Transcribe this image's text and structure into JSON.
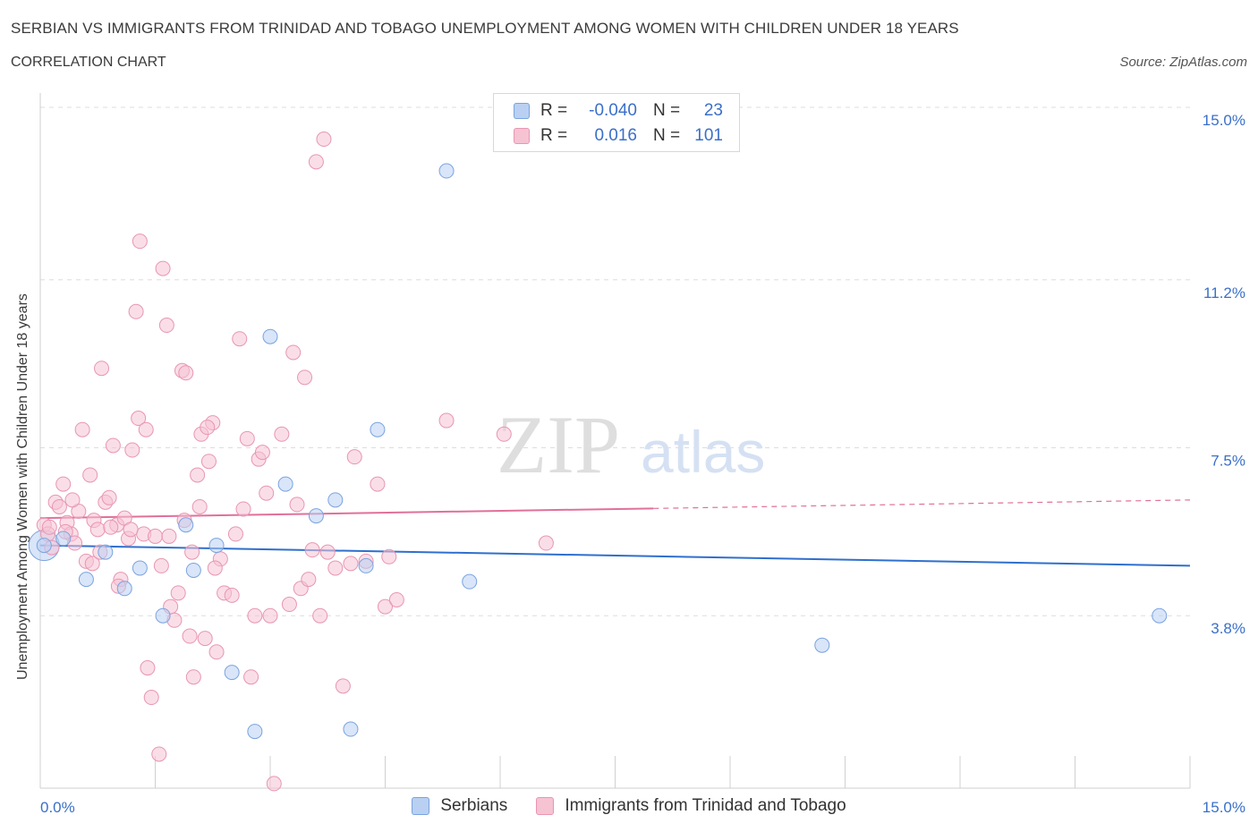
{
  "header": {
    "title": "SERBIAN VS IMMIGRANTS FROM TRINIDAD AND TOBAGO UNEMPLOYMENT AMONG WOMEN WITH CHILDREN UNDER 18 YEARS",
    "subtitle": "CORRELATION CHART",
    "source": "Source: ZipAtlas.com"
  },
  "watermark": {
    "zip": "ZIP",
    "atlas": "atlas"
  },
  "legend": {
    "r_label": "R =",
    "n_label": "N =",
    "serbians": {
      "r": "-0.040",
      "n": "23"
    },
    "trinidad": {
      "r": "0.016",
      "n": "101"
    }
  },
  "colors": {
    "serbians_fill": "#b9d0f2",
    "serbians_stroke": "#7aa3e0",
    "serbians_line": "#2f6fce",
    "trinidad_fill": "#f6c3d3",
    "trinidad_stroke": "#e896b1",
    "trinidad_line": "#e0709a",
    "tick_text": "#3a6fc9",
    "grid": "#dddddd"
  },
  "chart_data": {
    "type": "scatter",
    "title": "SERBIAN VS IMMIGRANTS FROM TRINIDAD AND TOBAGO UNEMPLOYMENT AMONG WOMEN WITH CHILDREN UNDER 18 YEARS",
    "xlabel": "",
    "ylabel": "Unemployment Among Women with Children Under 18 years",
    "xlim": [
      0,
      15
    ],
    "ylim": [
      0,
      15
    ],
    "x_tick_labels": [
      "0.0%",
      "15.0%"
    ],
    "y_ticks": [
      3.8,
      7.5,
      11.2,
      15.0
    ],
    "y_tick_labels": [
      "3.8%",
      "7.5%",
      "11.2%",
      "15.0%"
    ],
    "grid": true,
    "legend_position": "top-center",
    "series": [
      {
        "name": "Serbians",
        "trend": {
          "x": [
            0,
            15
          ],
          "y": [
            5.35,
            4.9
          ],
          "dashed_from": null
        },
        "points": [
          [
            0.05,
            5.35
          ],
          [
            0.3,
            5.5
          ],
          [
            0.6,
            4.6
          ],
          [
            0.85,
            5.2
          ],
          [
            1.1,
            4.4
          ],
          [
            1.3,
            4.85
          ],
          [
            1.6,
            3.8
          ],
          [
            1.9,
            5.8
          ],
          [
            2.0,
            4.8
          ],
          [
            2.3,
            5.35
          ],
          [
            2.5,
            2.55
          ],
          [
            2.8,
            1.25
          ],
          [
            3.0,
            9.95
          ],
          [
            3.2,
            6.7
          ],
          [
            3.6,
            6.0
          ],
          [
            3.85,
            6.35
          ],
          [
            4.05,
            1.3
          ],
          [
            4.25,
            4.9
          ],
          [
            4.4,
            7.9
          ],
          [
            5.3,
            13.6
          ],
          [
            5.6,
            4.55
          ],
          [
            10.2,
            3.15
          ],
          [
            14.6,
            3.8
          ]
        ]
      },
      {
        "name": "Immigrants from Trinidad and Tobago",
        "trend": {
          "x": [
            0,
            15
          ],
          "y": [
            5.95,
            6.35
          ],
          "dashed_from": 8.0
        },
        "points": [
          [
            0.05,
            5.8
          ],
          [
            0.1,
            5.6
          ],
          [
            0.15,
            5.3
          ],
          [
            0.2,
            6.3
          ],
          [
            0.25,
            6.2
          ],
          [
            0.3,
            6.7
          ],
          [
            0.35,
            5.85
          ],
          [
            0.4,
            5.6
          ],
          [
            0.45,
            5.4
          ],
          [
            0.5,
            6.1
          ],
          [
            0.55,
            7.9
          ],
          [
            0.6,
            5.0
          ],
          [
            0.65,
            6.9
          ],
          [
            0.7,
            5.9
          ],
          [
            0.75,
            5.7
          ],
          [
            0.8,
            9.25
          ],
          [
            0.85,
            6.3
          ],
          [
            0.9,
            6.4
          ],
          [
            0.95,
            7.55
          ],
          [
            1.0,
            5.8
          ],
          [
            1.05,
            4.6
          ],
          [
            1.1,
            5.95
          ],
          [
            1.15,
            5.5
          ],
          [
            1.2,
            7.45
          ],
          [
            1.25,
            10.5
          ],
          [
            1.3,
            12.05
          ],
          [
            1.35,
            5.6
          ],
          [
            1.4,
            2.65
          ],
          [
            1.45,
            2.0
          ],
          [
            1.5,
            5.55
          ],
          [
            1.55,
            0.75
          ],
          [
            1.6,
            11.45
          ],
          [
            1.65,
            10.2
          ],
          [
            1.7,
            4.0
          ],
          [
            1.75,
            3.7
          ],
          [
            1.8,
            4.3
          ],
          [
            1.85,
            9.2
          ],
          [
            1.9,
            9.15
          ],
          [
            1.95,
            3.35
          ],
          [
            2.0,
            2.45
          ],
          [
            2.05,
            6.9
          ],
          [
            2.1,
            7.8
          ],
          [
            2.15,
            3.3
          ],
          [
            2.2,
            7.2
          ],
          [
            2.25,
            8.05
          ],
          [
            2.3,
            3.0
          ],
          [
            2.35,
            5.05
          ],
          [
            2.4,
            4.3
          ],
          [
            2.5,
            4.25
          ],
          [
            2.6,
            9.9
          ],
          [
            2.65,
            6.15
          ],
          [
            2.7,
            7.7
          ],
          [
            2.75,
            2.45
          ],
          [
            2.8,
            3.8
          ],
          [
            2.85,
            7.25
          ],
          [
            2.9,
            7.4
          ],
          [
            2.95,
            6.5
          ],
          [
            3.0,
            3.8
          ],
          [
            3.05,
            0.1
          ],
          [
            3.15,
            7.8
          ],
          [
            3.25,
            4.05
          ],
          [
            3.3,
            9.6
          ],
          [
            3.4,
            4.4
          ],
          [
            3.45,
            9.05
          ],
          [
            3.5,
            4.6
          ],
          [
            3.55,
            5.25
          ],
          [
            3.6,
            13.8
          ],
          [
            3.65,
            3.8
          ],
          [
            3.7,
            14.3
          ],
          [
            3.85,
            4.85
          ],
          [
            3.95,
            2.25
          ],
          [
            4.1,
            7.3
          ],
          [
            4.25,
            5.0
          ],
          [
            4.4,
            6.7
          ],
          [
            4.5,
            4.0
          ],
          [
            4.55,
            5.1
          ],
          [
            4.65,
            4.15
          ],
          [
            5.3,
            8.1
          ],
          [
            6.05,
            7.8
          ],
          [
            6.6,
            5.4
          ],
          [
            0.12,
            5.75
          ],
          [
            0.33,
            5.65
          ],
          [
            0.42,
            6.35
          ],
          [
            0.68,
            4.95
          ],
          [
            0.78,
            5.2
          ],
          [
            0.92,
            5.75
          ],
          [
            1.02,
            4.45
          ],
          [
            1.18,
            5.7
          ],
          [
            1.28,
            8.15
          ],
          [
            1.38,
            7.9
          ],
          [
            1.58,
            4.9
          ],
          [
            1.68,
            5.55
          ],
          [
            1.88,
            5.9
          ],
          [
            1.98,
            5.2
          ],
          [
            2.08,
            6.2
          ],
          [
            2.18,
            7.95
          ],
          [
            2.28,
            4.85
          ],
          [
            3.35,
            6.25
          ],
          [
            3.75,
            5.2
          ],
          [
            4.05,
            4.95
          ],
          [
            2.55,
            5.6
          ]
        ]
      }
    ]
  },
  "bottom_legend": {
    "serbians": "Serbians",
    "trinidad": "Immigrants from Trinidad and Tobago"
  }
}
